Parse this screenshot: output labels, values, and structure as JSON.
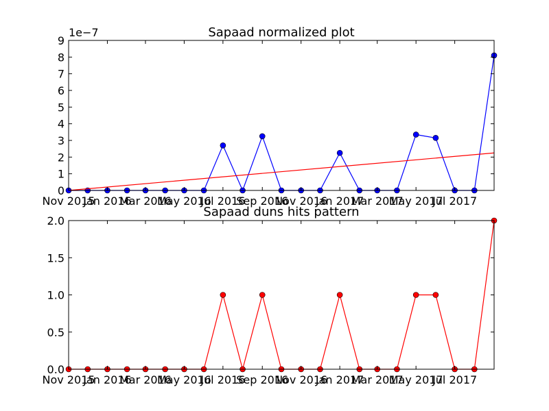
{
  "chart_data": [
    {
      "type": "line",
      "title": "Sapaad normalized plot",
      "offset_label": "1e−7",
      "x_dates": [
        "2015-11-01",
        "2015-12-01",
        "2016-01-01",
        "2016-02-01",
        "2016-03-01",
        "2016-04-01",
        "2016-05-01",
        "2016-06-01",
        "2016-07-01",
        "2016-08-01",
        "2016-09-01",
        "2016-10-01",
        "2016-11-01",
        "2016-12-01",
        "2017-01-01",
        "2017-02-01",
        "2017-03-01",
        "2017-04-01",
        "2017-05-01",
        "2017-06-01",
        "2017-07-01",
        "2017-08-01",
        "2017-09-01"
      ],
      "ylim": [
        0,
        9
      ],
      "yticks": [
        0,
        1,
        2,
        3,
        4,
        5,
        6,
        7,
        8,
        9
      ],
      "xtick_labels": [
        "Nov 2015",
        "Jan 2016",
        "Mar 2016",
        "May 2016",
        "Jul 2016",
        "Sep 2016",
        "Nov 2016",
        "Jan 2017",
        "Mar 2017",
        "May 2017",
        "Jul 2017"
      ],
      "xtick_dates": [
        "2015-11-01",
        "2016-01-01",
        "2016-03-01",
        "2016-05-01",
        "2016-07-01",
        "2016-09-01",
        "2016-11-01",
        "2017-01-01",
        "2017-03-01",
        "2017-05-01",
        "2017-07-01"
      ],
      "series": [
        {
          "values": [
            0,
            0,
            0,
            0,
            0,
            0,
            0,
            0,
            2.7,
            0,
            3.25,
            0,
            0,
            0,
            2.25,
            0,
            0,
            0,
            3.35,
            3.15,
            0,
            0,
            8.1
          ],
          "color": "#0000ff",
          "marker": "circle"
        },
        {
          "values": [
            0,
            2.25
          ],
          "x_dates": [
            "2015-11-01",
            "2017-09-01"
          ],
          "color": "#ff0000",
          "marker": "none"
        }
      ]
    },
    {
      "type": "line",
      "title": "Sapaad duns hits pattern",
      "x_dates": [
        "2015-11-01",
        "2015-12-01",
        "2016-01-01",
        "2016-02-01",
        "2016-03-01",
        "2016-04-01",
        "2016-05-01",
        "2016-06-01",
        "2016-07-01",
        "2016-08-01",
        "2016-09-01",
        "2016-10-01",
        "2016-11-01",
        "2016-12-01",
        "2017-01-01",
        "2017-02-01",
        "2017-03-01",
        "2017-04-01",
        "2017-05-01",
        "2017-06-01",
        "2017-07-01",
        "2017-08-01",
        "2017-09-01"
      ],
      "ylim": [
        0,
        2
      ],
      "yticks": [
        0,
        0.5,
        1,
        1.5,
        2
      ],
      "ytick_labels": [
        "0.0",
        "0.5",
        "1.0",
        "1.5",
        "2.0"
      ],
      "xtick_labels": [
        "Nov 2015",
        "Jan 2016",
        "Mar 2016",
        "May 2016",
        "Jul 2016",
        "Sep 2016",
        "Nov 2016",
        "Jan 2017",
        "Mar 2017",
        "May 2017",
        "Jul 2017"
      ],
      "xtick_dates": [
        "2015-11-01",
        "2016-01-01",
        "2016-03-01",
        "2016-05-01",
        "2016-07-01",
        "2016-09-01",
        "2016-11-01",
        "2017-01-01",
        "2017-03-01",
        "2017-05-01",
        "2017-07-01"
      ],
      "series": [
        {
          "values": [
            0,
            0,
            0,
            0,
            0,
            0,
            0,
            0,
            1,
            0,
            1,
            0,
            0,
            0,
            1,
            0,
            0,
            0,
            1,
            1,
            0,
            0,
            2
          ],
          "color": "#ff0000",
          "marker": "circle"
        }
      ]
    }
  ]
}
